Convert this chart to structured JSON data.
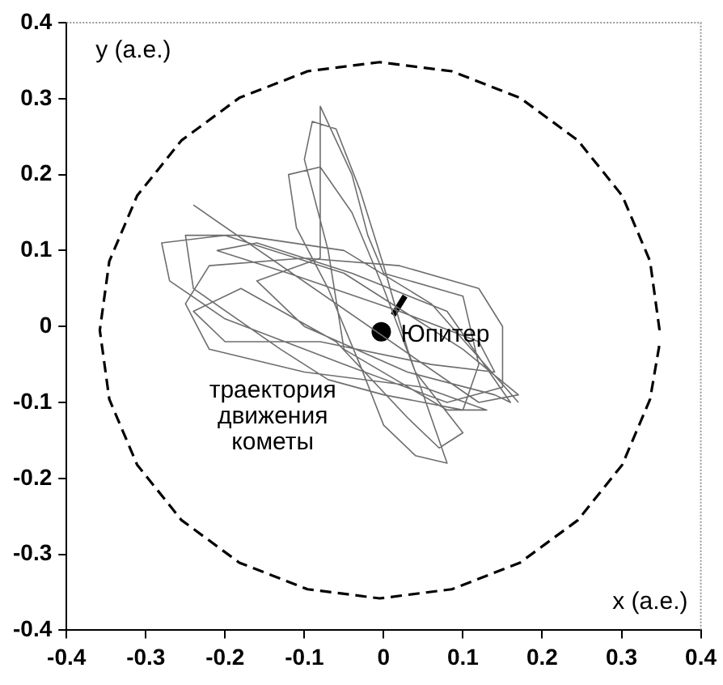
{
  "chart_data": {
    "type": "line",
    "xlabel": "x (a.e.)",
    "ylabel": "y (a.e.)",
    "xlim": [
      -0.4,
      0.4
    ],
    "ylim": [
      -0.4,
      0.4
    ],
    "xticks": [
      -0.4,
      -0.3,
      -0.2,
      -0.1,
      0,
      0.1,
      0.2,
      0.3,
      0.4
    ],
    "yticks": [
      -0.4,
      -0.3,
      -0.2,
      -0.1,
      0,
      0.1,
      0.2,
      0.3,
      0.4
    ],
    "grid": false,
    "legend": false,
    "series": [
      {
        "name": "траектория движения кометы",
        "type": "line",
        "color": "#6e6e6e",
        "marker": "none",
        "line_style": "solid",
        "x": [
          -0.24,
          0.12,
          0.17,
          0.1,
          -0.05,
          -0.2,
          -0.28,
          -0.27,
          -0.2,
          -0.05,
          0.08,
          0.15,
          0.15,
          0.12,
          0.02,
          -0.1,
          -0.22,
          -0.25,
          -0.22,
          -0.1,
          0.05,
          0.13,
          0.08,
          -0.05,
          -0.07,
          -0.1,
          -0.09,
          -0.06,
          -0.03,
          0.0,
          0.03,
          0.06,
          0.08,
          0.04,
          0.0,
          -0.03,
          -0.07,
          -0.11,
          -0.12,
          -0.08,
          -0.04,
          0.0,
          0.04,
          0.1,
          0.07,
          0.03,
          -0.06,
          -0.18,
          -0.24,
          -0.2,
          -0.08,
          0.06,
          0.14,
          0.12,
          0.02,
          -0.12,
          -0.21,
          -0.16,
          -0.04,
          0.08,
          0.16,
          0.14,
          0.03,
          -0.1,
          -0.16,
          -0.08,
          -0.08,
          -0.04,
          -0.02,
          0.0,
          0.1,
          0.12,
          0.1,
          0.0,
          -0.07,
          -0.13,
          -0.24,
          -0.25,
          -0.18,
          -0.05,
          0.06,
          0.17
        ],
        "values": [
          0.16,
          -0.1,
          -0.09,
          -0.03,
          0.07,
          0.12,
          0.11,
          0.06,
          0.01,
          -0.05,
          -0.1,
          -0.08,
          0.0,
          0.05,
          0.08,
          0.09,
          0.08,
          0.03,
          -0.03,
          -0.06,
          -0.08,
          -0.11,
          -0.11,
          -0.03,
          0.1,
          0.22,
          0.27,
          0.26,
          0.18,
          0.08,
          -0.03,
          -0.12,
          -0.18,
          -0.17,
          -0.13,
          -0.05,
          0.05,
          0.13,
          0.2,
          0.21,
          0.15,
          0.05,
          -0.06,
          -0.14,
          -0.16,
          -0.12,
          -0.02,
          0.05,
          0.02,
          -0.02,
          -0.02,
          -0.05,
          -0.06,
          -0.02,
          0.02,
          0.07,
          0.1,
          0.11,
          0.07,
          0.02,
          -0.1,
          -0.09,
          -0.06,
          0.0,
          0.06,
          0.09,
          0.29,
          0.2,
          0.12,
          0.07,
          0.04,
          -0.05,
          -0.11,
          -0.09,
          -0.07,
          -0.03,
          0.05,
          0.12,
          0.12,
          0.1,
          0.03,
          -0.1
        ]
      },
      {
        "type": "line",
        "color": "#000000",
        "marker": "none",
        "line_style": "solid",
        "x": [
          0.012,
          0.027
        ],
        "values": [
          0.015,
          0.04
        ]
      },
      {
        "name": "Юпитер",
        "type": "scatter",
        "color": "#000000",
        "marker": "circle",
        "x": [
          -0.003
        ],
        "values": [
          -0.007
        ]
      },
      {
        "type": "line",
        "color": "#000000",
        "marker": "none",
        "line_style": "dashed",
        "x": [
          0.348,
          0.336,
          0.301,
          0.245,
          0.172,
          0.086,
          -0.005,
          -0.096,
          -0.182,
          -0.255,
          -0.311,
          -0.346,
          -0.358,
          -0.346,
          -0.311,
          -0.255,
          -0.182,
          -0.096,
          -0.005,
          0.086,
          0.172,
          0.245,
          0.301,
          0.336,
          0.348
        ],
        "values": [
          -0.005,
          0.086,
          0.172,
          0.245,
          0.301,
          0.336,
          0.348,
          0.336,
          0.301,
          0.245,
          0.172,
          0.086,
          -0.005,
          -0.096,
          -0.182,
          -0.255,
          -0.311,
          -0.346,
          -0.358,
          -0.346,
          -0.311,
          -0.255,
          -0.182,
          -0.096,
          -0.023
        ]
      }
    ]
  }
}
